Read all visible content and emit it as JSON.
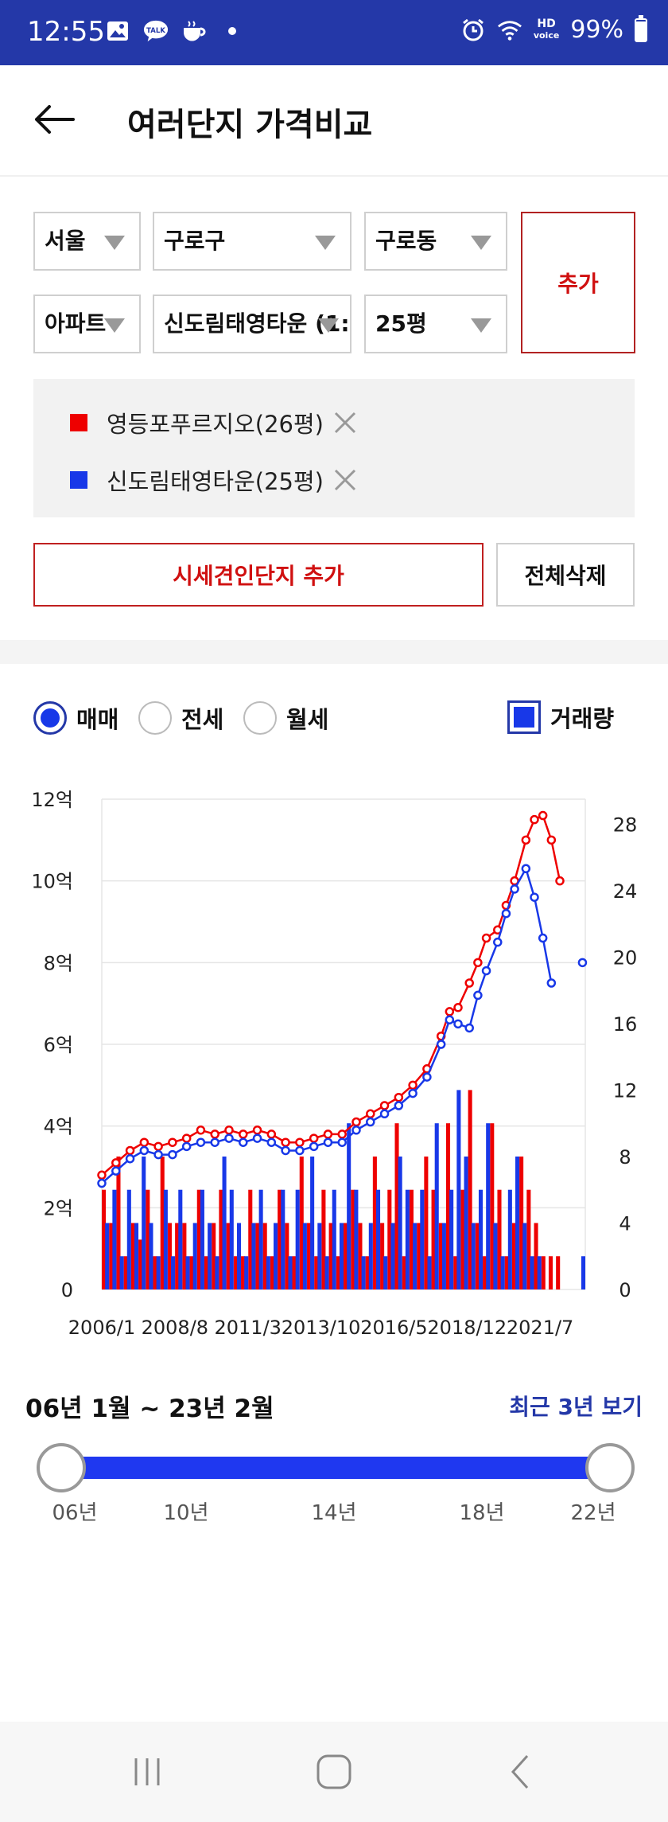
{
  "status_bar": {
    "time": "12:55",
    "battery": "99%",
    "hd_line1": "HD",
    "hd_line2": "voice",
    "left_icons": [
      "gallery-icon",
      "kakaotalk-icon",
      "cup-icon",
      "dot-icon"
    ],
    "kakao_label": "TALK",
    "right_icons": [
      "alarm-icon",
      "wifi-icon",
      "hd-voice-icon",
      "battery-icon"
    ]
  },
  "header": {
    "title": "여러단지 가격비교"
  },
  "selectors": {
    "city": "서울",
    "district": "구로구",
    "dong": "구로동",
    "type": "아파트",
    "complex": "신도림태영타운 (1:",
    "size": "25평",
    "add_label": "추가"
  },
  "selected": [
    {
      "label": "영등포푸르지오(26평)",
      "color": "#ee0000"
    },
    {
      "label": "신도림태영타운(25평)",
      "color": "#1838e8"
    }
  ],
  "buttons": {
    "add_benchmark": "시세견인단지 추가",
    "delete_all": "전체삭제"
  },
  "modes": {
    "options": [
      "매매",
      "전세",
      "월세"
    ],
    "selected": "매매",
    "volume_label": "거래량",
    "volume_checked": true
  },
  "chart_data": {
    "type": "line",
    "left_axis": {
      "ticks": [
        "0",
        "2억",
        "4억",
        "6억",
        "8억",
        "10억",
        "12억"
      ],
      "values": [
        0,
        2,
        4,
        6,
        8,
        10,
        12
      ],
      "unit": "억"
    },
    "right_axis": {
      "ticks": [
        "0",
        "4",
        "8",
        "12",
        "16",
        "20",
        "24",
        "28"
      ],
      "values": [
        0,
        4,
        8,
        12,
        16,
        20,
        24,
        28
      ]
    },
    "x_ticks": [
      "2006/1",
      "2008/8",
      "2011/3",
      "2013/10",
      "2016/5",
      "2018/12",
      "2021/7"
    ],
    "x_range": [
      2006.0,
      2023.1
    ],
    "series": [
      {
        "name": "영등포푸르지오(26평)",
        "color": "#ee0000",
        "x": [
          2006.0,
          2006.5,
          2007.0,
          2007.5,
          2008.0,
          2008.5,
          2009.0,
          2009.5,
          2010.0,
          2010.5,
          2011.0,
          2011.5,
          2012.0,
          2012.5,
          2013.0,
          2013.5,
          2014.0,
          2014.5,
          2015.0,
          2015.5,
          2016.0,
          2016.5,
          2017.0,
          2017.5,
          2018.0,
          2018.3,
          2018.6,
          2019.0,
          2019.3,
          2019.6,
          2020.0,
          2020.3,
          2020.6,
          2021.0,
          2021.3,
          2021.6,
          2021.9,
          2022.2,
          2022.6
        ],
        "y": [
          2.8,
          3.1,
          3.4,
          3.6,
          3.5,
          3.6,
          3.7,
          3.9,
          3.8,
          3.9,
          3.8,
          3.9,
          3.8,
          3.6,
          3.6,
          3.7,
          3.8,
          3.8,
          4.1,
          4.3,
          4.5,
          4.7,
          5.0,
          5.4,
          6.2,
          6.8,
          6.9,
          7.5,
          8.0,
          8.6,
          8.8,
          9.4,
          10.0,
          11.0,
          11.5,
          11.6,
          11.0,
          10.0,
          null
        ]
      },
      {
        "name": "신도림태영타운(25평)",
        "color": "#1838e8",
        "x": [
          2006.0,
          2006.5,
          2007.0,
          2007.5,
          2008.0,
          2008.5,
          2009.0,
          2009.5,
          2010.0,
          2010.5,
          2011.0,
          2011.5,
          2012.0,
          2012.5,
          2013.0,
          2013.5,
          2014.0,
          2014.5,
          2015.0,
          2015.5,
          2016.0,
          2016.5,
          2017.0,
          2017.5,
          2018.0,
          2018.3,
          2018.6,
          2019.0,
          2019.3,
          2019.6,
          2020.0,
          2020.3,
          2020.6,
          2021.0,
          2021.3,
          2021.6,
          2021.9,
          2022.2,
          2022.6,
          2023.0
        ],
        "y": [
          2.6,
          2.9,
          3.2,
          3.4,
          3.3,
          3.3,
          3.5,
          3.6,
          3.6,
          3.7,
          3.6,
          3.7,
          3.6,
          3.4,
          3.4,
          3.5,
          3.6,
          3.6,
          3.9,
          4.1,
          4.3,
          4.5,
          4.8,
          5.2,
          6.0,
          6.6,
          6.5,
          6.4,
          7.2,
          7.8,
          8.5,
          9.2,
          9.8,
          10.3,
          9.6,
          8.6,
          7.5,
          null,
          null,
          8.0
        ]
      }
    ],
    "volume": {
      "red": [
        6,
        4,
        8,
        2,
        4,
        3,
        6,
        2,
        8,
        4,
        4,
        4,
        2,
        6,
        2,
        4,
        6,
        4,
        2,
        2,
        6,
        4,
        4,
        2,
        6,
        4,
        2,
        8,
        4,
        2,
        6,
        4,
        2,
        4,
        6,
        4,
        2,
        8,
        4,
        6,
        10,
        2,
        6,
        4,
        8,
        6,
        4,
        10,
        2,
        6,
        12,
        4,
        2,
        10,
        6,
        2,
        4,
        8,
        6,
        4,
        2,
        2,
        2,
        0,
        0,
        0
      ],
      "blue": [
        4,
        6,
        2,
        6,
        4,
        8,
        4,
        2,
        6,
        2,
        6,
        2,
        4,
        6,
        4,
        2,
        8,
        6,
        4,
        2,
        4,
        6,
        2,
        4,
        6,
        2,
        6,
        4,
        8,
        4,
        2,
        6,
        4,
        10,
        6,
        2,
        4,
        6,
        2,
        4,
        8,
        6,
        4,
        6,
        2,
        10,
        4,
        6,
        12,
        8,
        4,
        6,
        10,
        4,
        2,
        6,
        8,
        4,
        2,
        2,
        0,
        0,
        0,
        0,
        0,
        2
      ]
    }
  },
  "range": {
    "label": "06년 1월 ~ 23년 2월",
    "recent_btn": "최근 3년 보기",
    "ticks": [
      "06년",
      "10년",
      "14년",
      "18년",
      "22년"
    ]
  }
}
